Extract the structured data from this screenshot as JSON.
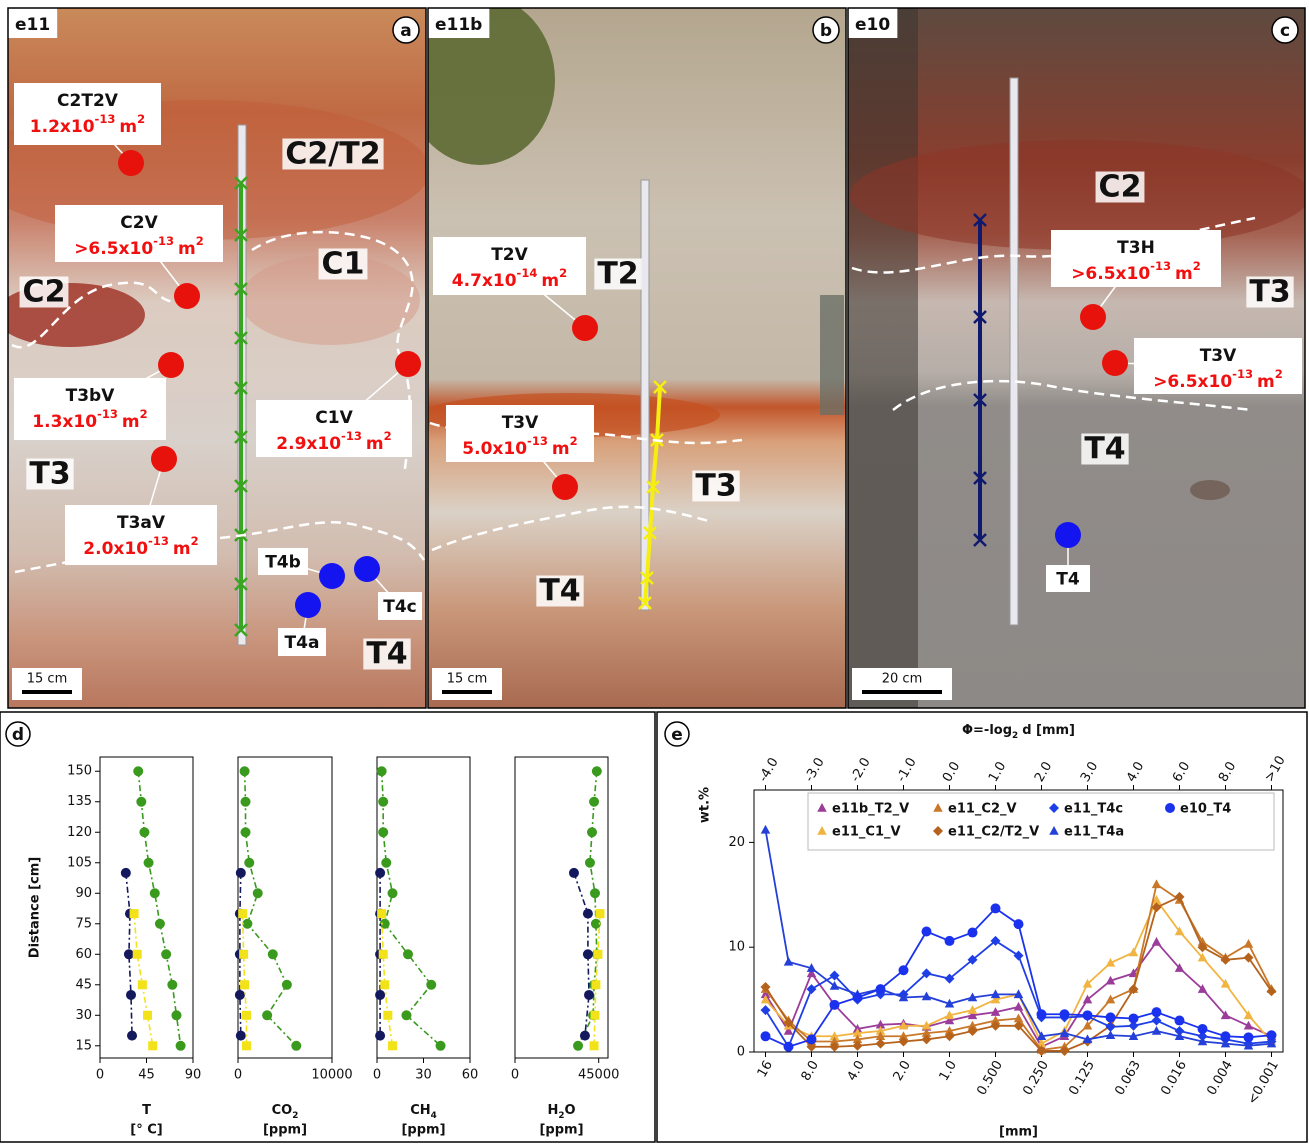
{
  "photos": [
    {
      "site": "e11",
      "panel": "a",
      "scale": "15 cm",
      "units": [
        "C2/T2",
        "C1",
        "C2",
        "T3",
        "T4"
      ],
      "samples": [
        {
          "name": "C2T2V",
          "permeability": [
            "1.2x10",
            "-13",
            "m",
            "2"
          ],
          "color": "#e8120c"
        },
        {
          "name": "C2V",
          "permeability": [
            ">6.5x10",
            "-13",
            "m",
            "2"
          ],
          "color": "#e8120c"
        },
        {
          "name": "T3bV",
          "permeability": [
            "1.3x10",
            "-13",
            "m",
            "2"
          ],
          "color": "#e8120c"
        },
        {
          "name": "C1V",
          "permeability": [
            "2.9x10",
            "-13",
            "m",
            "2"
          ],
          "color": "#e8120c"
        },
        {
          "name": "T3aV",
          "permeability": [
            "2.0x10",
            "-13",
            "m",
            "2"
          ],
          "color": "#e8120c"
        },
        {
          "name": "T4b",
          "color": "#1414f0"
        },
        {
          "name": "T4c",
          "color": "#1414f0"
        },
        {
          "name": "T4a",
          "color": "#1414f0"
        }
      ]
    },
    {
      "site": "e11b",
      "panel": "b",
      "scale": "15 cm",
      "units": [
        "T2",
        "T3",
        "T4"
      ],
      "samples": [
        {
          "name": "T2V",
          "permeability": [
            "4.7x10",
            "-14",
            "m",
            "2"
          ],
          "color": "#e8120c"
        },
        {
          "name": "T3V",
          "permeability": [
            "5.0x10",
            "-13",
            "m",
            "2"
          ],
          "color": "#e8120c"
        }
      ]
    },
    {
      "site": "e10",
      "panel": "c",
      "scale": "20 cm",
      "units": [
        "C2",
        "T3",
        "T4"
      ],
      "samples": [
        {
          "name": "T3H",
          "permeability": [
            ">6.5x10",
            "-13",
            "m",
            "2"
          ],
          "color": "#e8120c"
        },
        {
          "name": "T3V",
          "permeability": [
            ">6.5x10",
            "-13",
            "m",
            "2"
          ],
          "color": "#e8120c"
        },
        {
          "name": "T4",
          "color": "#1414f0"
        }
      ]
    }
  ],
  "chart_data": [
    {
      "type": "line",
      "panel_label": "d",
      "ylabel": "Distance [cm]",
      "xlabel": [
        "T"
      ],
      "xunit": "[° C]",
      "xlim": [
        0,
        90
      ],
      "xticks": [
        0,
        45,
        90
      ],
      "ylim": [
        9,
        157
      ],
      "yticks": [
        15,
        30,
        45,
        60,
        75,
        90,
        105,
        120,
        135,
        150
      ],
      "series": [
        {
          "color": "#3a9a1e",
          "marker": "circle",
          "y": [
            150,
            135,
            120,
            105,
            90,
            75,
            60,
            45,
            30,
            15
          ],
          "x": [
            37,
            40,
            43,
            47,
            53,
            58,
            64,
            70,
            74,
            78
          ]
        },
        {
          "color": "#14195e",
          "marker": "circle",
          "y": [
            100,
            80,
            60,
            40,
            20
          ],
          "x": [
            25,
            29,
            28,
            30,
            31
          ]
        },
        {
          "color": "#f2e21a",
          "marker": "square",
          "y": [
            80,
            60,
            45,
            30,
            15
          ],
          "x": [
            33,
            36,
            41,
            46,
            51
          ]
        }
      ]
    },
    {
      "type": "line",
      "xlabel": [
        "CO",
        "2"
      ],
      "xunit": "[ppm]",
      "xlim": [
        0,
        10000
      ],
      "xticks": [
        0,
        10000
      ],
      "ylim": [
        9,
        157
      ],
      "series": [
        {
          "color": "#3a9a1e",
          "marker": "circle",
          "y": [
            150,
            135,
            120,
            105,
            90,
            75,
            60,
            45,
            30,
            15
          ],
          "x": [
            700,
            800,
            800,
            1200,
            2100,
            1000,
            3700,
            5200,
            3100,
            6200
          ]
        },
        {
          "color": "#14195e",
          "marker": "circle",
          "y": [
            100,
            80,
            60,
            40,
            20
          ],
          "x": [
            300,
            200,
            200,
            200,
            300
          ]
        },
        {
          "color": "#f2e21a",
          "marker": "square",
          "y": [
            80,
            60,
            45,
            30,
            15
          ],
          "x": [
            500,
            600,
            700,
            900,
            900
          ]
        }
      ]
    },
    {
      "type": "line",
      "xlabel": [
        "CH",
        "4"
      ],
      "xunit": "[ppm]",
      "xlim": [
        0,
        60
      ],
      "xticks": [
        0,
        30,
        60
      ],
      "ylim": [
        9,
        157
      ],
      "series": [
        {
          "color": "#3a9a1e",
          "marker": "circle",
          "y": [
            150,
            135,
            120,
            105,
            90,
            75,
            60,
            45,
            30,
            15
          ],
          "x": [
            3,
            4,
            4,
            6,
            10,
            5,
            20,
            35,
            19,
            41
          ]
        },
        {
          "color": "#14195e",
          "marker": "circle",
          "y": [
            100,
            80,
            60,
            40,
            20
          ],
          "x": [
            2,
            2,
            2,
            2,
            2
          ]
        },
        {
          "color": "#f2e21a",
          "marker": "square",
          "y": [
            80,
            60,
            45,
            30,
            15
          ],
          "x": [
            3,
            4,
            5,
            7,
            10
          ]
        }
      ]
    },
    {
      "type": "line",
      "xlabel": [
        "H",
        "2",
        "O"
      ],
      "xunit": "[ppm]",
      "xlim": [
        0,
        50000
      ],
      "xticks": [
        0,
        45000
      ],
      "ylim": [
        9,
        157
      ],
      "series": [
        {
          "color": "#3a9a1e",
          "marker": "circle",
          "y": [
            150,
            135,
            120,
            105,
            90,
            75,
            60,
            45,
            30,
            15
          ],
          "x": [
            44000,
            42500,
            41400,
            40300,
            43000,
            43500,
            44000,
            42500,
            42000,
            33900
          ]
        },
        {
          "color": "#14195e",
          "marker": "circle",
          "y": [
            100,
            80,
            60,
            40,
            20
          ],
          "x": [
            31700,
            39200,
            39200,
            39800,
            37600
          ]
        },
        {
          "color": "#f2e21a",
          "marker": "square",
          "y": [
            80,
            60,
            45,
            30,
            15
          ],
          "x": [
            45700,
            44600,
            43500,
            43000,
            42500
          ]
        }
      ]
    },
    {
      "type": "line",
      "panel_label": "e",
      "ylabel": "wt.%",
      "xlabel": "[mm]",
      "top_xlabel": [
        "Φ=-log",
        "2",
        "d [mm]"
      ],
      "categories": [
        "16",
        null,
        "8.0",
        null,
        "4.0",
        null,
        "2.0",
        null,
        "1.0",
        null,
        "0.500",
        null,
        "0.250",
        null,
        "0.125",
        null,
        "0.063",
        null,
        "0.016",
        null,
        "0.004",
        null,
        "<0.001"
      ],
      "top_categories": [
        "-4.0",
        null,
        "-3.0",
        null,
        "-2.0",
        null,
        "-1.0",
        null,
        "0.0",
        null,
        "1.0",
        null,
        "2.0",
        null,
        "3.0",
        null,
        "4.0",
        null,
        "6.0",
        null,
        "8.0",
        null,
        ">10"
      ],
      "ylim": [
        0,
        25
      ],
      "yticks": [
        0,
        10,
        20
      ],
      "series": [
        {
          "name": "e11b_T2_V",
          "color": "#9b3c9b",
          "marker": "triangle",
          "values": [
            5.5,
            2.0,
            7.5,
            4.5,
            2.2,
            2.6,
            2.7,
            2.4,
            3.0,
            3.5,
            3.8,
            4.3,
            0.5,
            1.5,
            5.0,
            6.8,
            7.5,
            10.5,
            8.0,
            6.0,
            3.5,
            2.5,
            1.5
          ]
        },
        {
          "name": "e11_C1_V",
          "color": "#f2b440",
          "marker": "triangle",
          "values": [
            5.0,
            2.5,
            1.5,
            1.5,
            1.8,
            2.0,
            2.5,
            2.5,
            3.5,
            4.0,
            5.0,
            5.5,
            0.8,
            2.0,
            6.5,
            8.5,
            9.5,
            14.5,
            11.5,
            9.0,
            6.5,
            3.5,
            1.0
          ]
        },
        {
          "name": "e11_C2_V",
          "color": "#c9782a",
          "marker": "triangle",
          "values": [
            6.0,
            3.0,
            1.0,
            1.0,
            1.2,
            1.5,
            1.5,
            1.8,
            2.0,
            2.5,
            3.0,
            3.2,
            0.2,
            0.5,
            2.5,
            5.0,
            6.0,
            16.0,
            14.5,
            10.5,
            9.0,
            10.3,
            6.0
          ]
        },
        {
          "name": "e11_C2/T2_V",
          "color": "#b5621c",
          "marker": "diamond",
          "values": [
            6.2,
            2.8,
            0.5,
            0.5,
            0.6,
            0.8,
            1.0,
            1.2,
            1.5,
            2.0,
            2.5,
            2.5,
            0.1,
            0.1,
            1.0,
            2.5,
            6.0,
            13.8,
            14.8,
            10.0,
            8.8,
            9.0,
            5.8
          ]
        },
        {
          "name": "e11_T4c",
          "color": "#1f3fe6",
          "marker": "diamond",
          "values": [
            4.0,
            0.5,
            6.0,
            7.3,
            5.0,
            5.5,
            5.5,
            7.5,
            7.0,
            8.8,
            10.6,
            9.2,
            3.3,
            3.3,
            3.4,
            2.4,
            2.5,
            3.0,
            2.0,
            1.5,
            1.2,
            0.8,
            1.0
          ]
        },
        {
          "name": "e11_T4a",
          "color": "#2440d8",
          "marker": "triangle",
          "values": [
            21.2,
            8.6,
            8.0,
            6.3,
            5.5,
            6.0,
            5.2,
            5.3,
            4.6,
            5.2,
            5.5,
            5.5,
            1.5,
            1.8,
            1.2,
            1.6,
            1.5,
            2.0,
            1.5,
            1.0,
            0.8,
            0.6,
            0.8
          ]
        },
        {
          "name": "e10_T4",
          "color": "#1a32ee",
          "marker": "circle",
          "values": [
            1.5,
            0.5,
            1.2,
            4.5,
            5.2,
            6.0,
            7.8,
            11.5,
            10.6,
            11.4,
            13.7,
            12.2,
            3.6,
            3.6,
            3.5,
            3.3,
            3.2,
            3.8,
            3.0,
            2.2,
            1.5,
            1.4,
            1.6
          ]
        }
      ]
    }
  ]
}
